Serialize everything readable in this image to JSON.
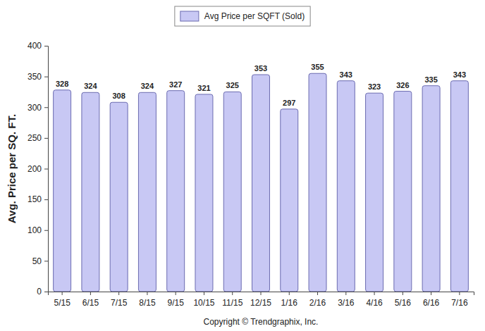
{
  "chart_data": {
    "type": "bar",
    "categories": [
      "5/15",
      "6/15",
      "7/15",
      "8/15",
      "9/15",
      "10/15",
      "11/15",
      "12/15",
      "1/16",
      "2/16",
      "3/16",
      "4/16",
      "5/16",
      "6/16",
      "7/16"
    ],
    "series": [
      {
        "name": "Avg Price per SQFT (Sold)",
        "color": "#c8c8f4",
        "values": [
          328,
          324,
          308,
          324,
          327,
          321,
          325,
          353,
          297,
          355,
          343,
          323,
          326,
          335,
          343
        ]
      }
    ],
    "y_label": "Avg. Price per SQ. FT.",
    "annotation": "Copyright © Trendgraphix, Inc.",
    "ylim": [
      0,
      400
    ],
    "yticks": [
      0,
      50,
      100,
      150,
      200,
      250,
      300,
      350,
      400
    ],
    "grid": false,
    "legend": "top",
    "data_labels": true
  }
}
